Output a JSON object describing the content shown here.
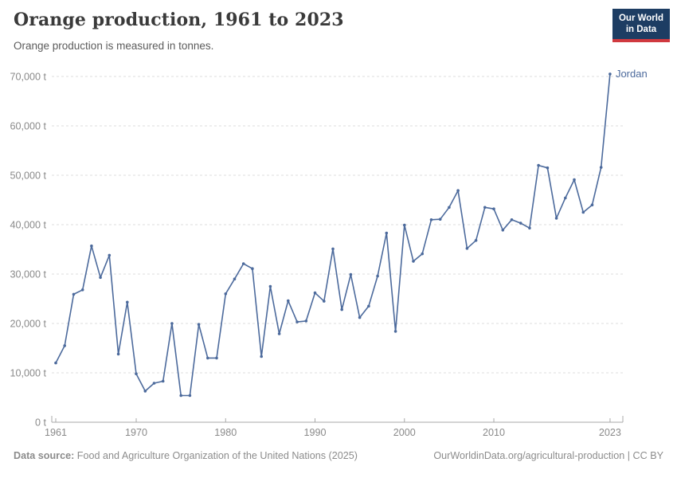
{
  "header": {
    "title": "Orange production, 1961 to 2023",
    "subtitle": "Orange production is measured in tonnes.",
    "logo_line1": "Our World",
    "logo_line2": "in Data"
  },
  "chart_data": {
    "type": "line",
    "title": "Orange production, 1961 to 2023",
    "unit": "tonnes",
    "grid": "horizontal-dashed",
    "legend": "line-end-label",
    "xlim": [
      1961,
      2023
    ],
    "ylim": [
      0,
      71500
    ],
    "xticks": [
      1961,
      1970,
      1980,
      1990,
      2000,
      2010,
      2023
    ],
    "yticks": [
      0,
      10000,
      20000,
      30000,
      40000,
      50000,
      60000,
      70000
    ],
    "ytick_suffix": " t",
    "years": [
      1961,
      1962,
      1963,
      1964,
      1965,
      1966,
      1967,
      1968,
      1969,
      1970,
      1971,
      1972,
      1973,
      1974,
      1975,
      1976,
      1977,
      1978,
      1979,
      1980,
      1981,
      1982,
      1983,
      1984,
      1985,
      1986,
      1987,
      1988,
      1989,
      1990,
      1991,
      1992,
      1993,
      1994,
      1995,
      1996,
      1997,
      1998,
      1999,
      2000,
      2001,
      2002,
      2003,
      2004,
      2005,
      2006,
      2007,
      2008,
      2009,
      2010,
      2011,
      2012,
      2013,
      2014,
      2015,
      2016,
      2017,
      2018,
      2019,
      2020,
      2021,
      2022,
      2023
    ],
    "series": [
      {
        "name": "Jordan",
        "color": "#4C6A9C",
        "values": [
          12000,
          15500,
          25900,
          26800,
          35700,
          29300,
          33800,
          13800,
          24300,
          9800,
          6300,
          7900,
          8300,
          20000,
          5400,
          5400,
          19800,
          13000,
          13000,
          26000,
          29000,
          32100,
          31100,
          13300,
          27500,
          17900,
          24600,
          20300,
          20500,
          26200,
          24500,
          35100,
          22800,
          29900,
          21200,
          23500,
          29600,
          38300,
          18400,
          39900,
          32600,
          34100,
          41000,
          41100,
          43500,
          46900,
          35200,
          36800,
          43500,
          43200,
          38900,
          41000,
          40300,
          39300,
          52000,
          51500,
          41300,
          45400,
          49100,
          42500,
          44000,
          51600,
          70500
        ]
      }
    ]
  },
  "footer": {
    "source_label": "Data source:",
    "source_text": " Food and Agriculture Organization of the United Nations (2025)",
    "link_text": "OurWorldinData.org/agricultural-production",
    "license_text": " | CC BY"
  },
  "colors": {
    "line": "#4C6A9C",
    "logo_bg": "#1d3d63",
    "logo_bar": "#d0393f",
    "gridline": "#dcdcdc",
    "axis": "#a8a8a8",
    "tick_label": "#8a8a8a"
  }
}
